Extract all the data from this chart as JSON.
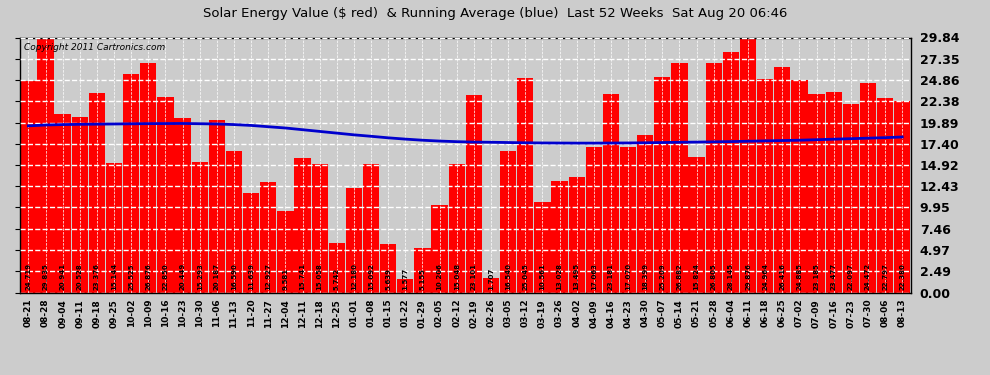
{
  "title": "Solar Energy Value ($ red)  & Running Average (blue)  Last 52 Weeks  Sat Aug 20 06:46",
  "copyright": "Copyright 2011 Cartronics.com",
  "bar_color": "#FF0000",
  "avg_line_color": "#0000CD",
  "background_color": "#E8E8E8",
  "plot_bg_color": "#D8D8D8",
  "grid_color": "#AAAAAA",
  "ylim": [
    0.0,
    29.84
  ],
  "yticks": [
    0.0,
    2.49,
    4.97,
    7.46,
    9.95,
    12.43,
    14.92,
    17.4,
    19.89,
    22.38,
    24.86,
    27.35,
    29.84
  ],
  "categories": [
    "08-21",
    "08-28",
    "09-04",
    "09-11",
    "09-18",
    "09-25",
    "10-02",
    "10-09",
    "10-16",
    "10-23",
    "10-30",
    "11-06",
    "11-13",
    "11-20",
    "11-27",
    "12-04",
    "12-11",
    "12-18",
    "12-25",
    "01-01",
    "01-08",
    "01-15",
    "01-22",
    "01-29",
    "02-05",
    "02-12",
    "02-19",
    "02-26",
    "03-05",
    "03-12",
    "03-19",
    "03-26",
    "04-02",
    "04-09",
    "04-16",
    "04-23",
    "04-30",
    "05-07",
    "05-14",
    "05-21",
    "05-28",
    "06-04",
    "06-11",
    "06-18",
    "06-25",
    "07-02",
    "07-09",
    "07-16",
    "07-23",
    "07-30",
    "08-06",
    "08-13"
  ],
  "values": [
    24.719,
    29.835,
    20.941,
    20.528,
    23.376,
    15.144,
    25.525,
    26.876,
    22.85,
    20.449,
    15.293,
    20.187,
    16.59,
    11.639,
    12.927,
    9.581,
    15.741,
    15.058,
    5.742,
    12.18,
    15.092,
    5.639,
    1.577,
    5.155,
    10.206,
    15.048,
    23.101,
    1.707,
    16.54,
    25.045,
    10.561,
    13.028,
    13.495,
    17.063,
    23.181,
    17.07,
    18.399,
    25.209,
    26.882,
    15.824,
    26.805,
    28.145,
    29.876,
    24.964,
    26.416,
    24.885,
    23.185,
    23.477,
    22.097,
    24.472,
    22.797,
    22.38
  ],
  "running_avg": [
    19.5,
    19.6,
    19.65,
    19.68,
    19.7,
    19.72,
    19.74,
    19.76,
    19.77,
    19.78,
    19.75,
    19.72,
    19.65,
    19.55,
    19.4,
    19.25,
    19.05,
    18.85,
    18.65,
    18.45,
    18.28,
    18.1,
    17.95,
    17.82,
    17.72,
    17.65,
    17.6,
    17.58,
    17.55,
    17.52,
    17.5,
    17.49,
    17.48,
    17.48,
    17.49,
    17.5,
    17.52,
    17.55,
    17.58,
    17.6,
    17.63,
    17.66,
    17.7,
    17.74,
    17.78,
    17.82,
    17.88,
    17.94,
    18.0,
    18.06,
    18.12,
    18.2
  ]
}
